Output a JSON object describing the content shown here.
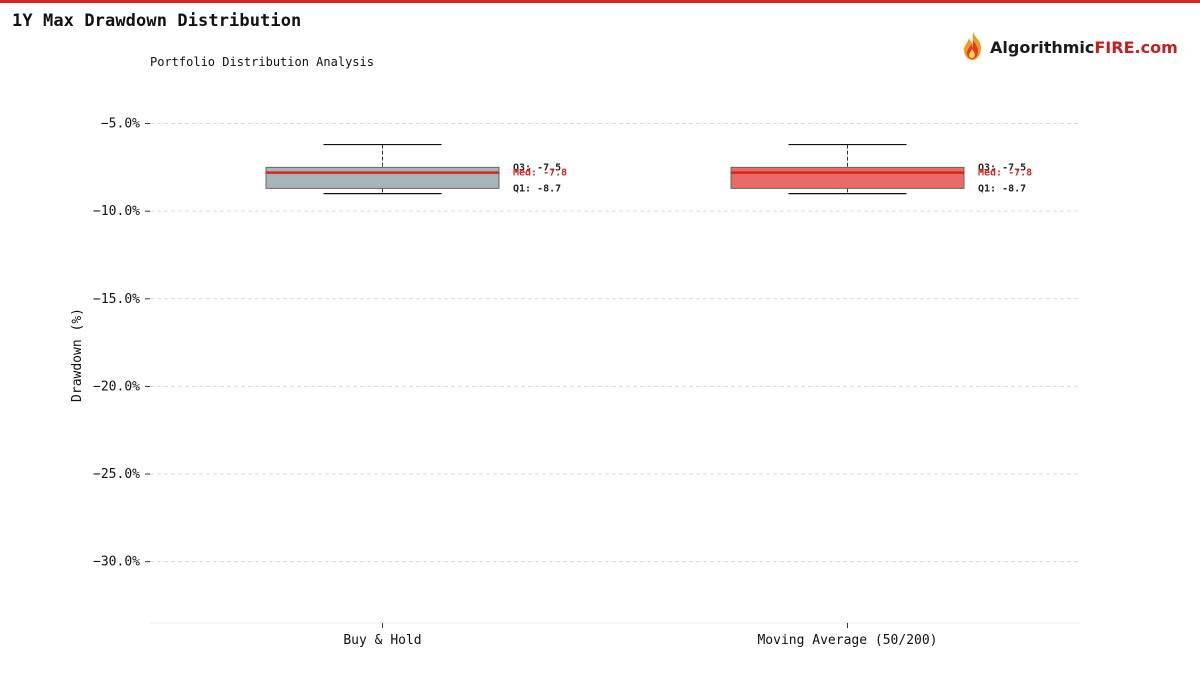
{
  "header": {
    "title": "1Y Max Drawdown Distribution",
    "subtitle": "Portfolio Distribution Analysis",
    "logo_text_a": "Algorithmic",
    "logo_text_b": "FIRE.com"
  },
  "colors": {
    "accent": "#d7261e",
    "grid": "#d9d9d9",
    "median": "#d7261e",
    "annotation": "#222222"
  },
  "chart_data": {
    "type": "box",
    "title": "1Y Max Drawdown Distribution",
    "subtitle": "Portfolio Distribution Analysis",
    "ylabel": "Drawdown (%)",
    "xlabel": "",
    "ylim": [
      -33.5,
      -2.8
    ],
    "yticks": [
      -5,
      -10,
      -15,
      -20,
      -25,
      -30
    ],
    "ytick_labels": [
      "−5.0%",
      "−10.0%",
      "−15.0%",
      "−20.0%",
      "−25.0%",
      "−30.0%"
    ],
    "grid": true,
    "categories": [
      "Buy & Hold",
      "Moving Average (50/200)"
    ],
    "boxes": [
      {
        "category": "Buy & Hold",
        "whisker_high": -6.2,
        "q3": -7.5,
        "median": -7.8,
        "q1": -8.7,
        "whisker_low": -9.0,
        "fill": "#a9b4b9",
        "labels": {
          "q3": "Q3: -7.5",
          "median": "Med: -7.8",
          "q1": "Q1: -8.7"
        }
      },
      {
        "category": "Moving Average (50/200)",
        "whisker_high": -6.2,
        "q3": -7.5,
        "median": -7.8,
        "q1": -8.7,
        "whisker_low": -9.0,
        "fill": "#ea6a66",
        "labels": {
          "q3": "Q3: -7.5",
          "median": "Med: -7.8",
          "q1": "Q1: -8.7"
        }
      }
    ]
  }
}
